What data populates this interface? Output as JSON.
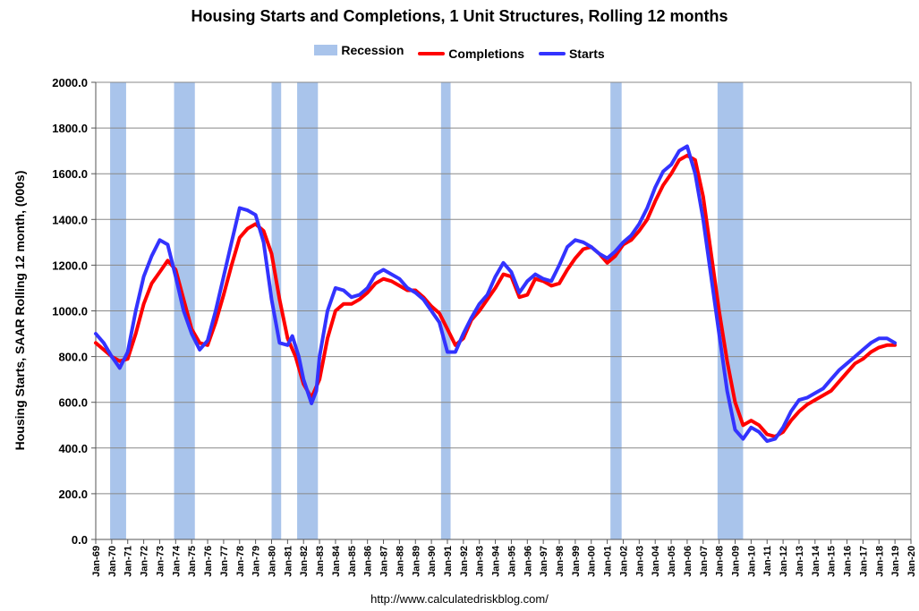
{
  "chart_data": {
    "type": "line",
    "title": "Housing Starts and Completions, 1 Unit Structures, Rolling 12 months",
    "ylabel": "Housing Starts, SAAR Rolling 12 month, (000s)",
    "xlabel": "",
    "source": "http://www.calculatedriskblog.com/",
    "ylim": [
      0,
      2000
    ],
    "xlim": [
      1969,
      2020
    ],
    "y_ticks": [
      "0.0",
      "200.0",
      "400.0",
      "600.0",
      "800.0",
      "1000.0",
      "1200.0",
      "1400.0",
      "1600.0",
      "1800.0",
      "2000.0"
    ],
    "x_ticks": [
      "Jan-69",
      "Jan-70",
      "Jan-71",
      "Jan-72",
      "Jan-73",
      "Jan-74",
      "Jan-75",
      "Jan-76",
      "Jan-77",
      "Jan-78",
      "Jan-79",
      "Jan-80",
      "Jan-81",
      "Jan-82",
      "Jan-83",
      "Jan-84",
      "Jan-85",
      "Jan-86",
      "Jan-87",
      "Jan-88",
      "Jan-89",
      "Jan-90",
      "Jan-91",
      "Jan-92",
      "Jan-93",
      "Jan-94",
      "Jan-95",
      "Jan-96",
      "Jan-97",
      "Jan-98",
      "Jan-99",
      "Jan-00",
      "Jan-01",
      "Jan-02",
      "Jan-03",
      "Jan-04",
      "Jan-05",
      "Jan-06",
      "Jan-07",
      "Jan-08",
      "Jan-09",
      "Jan-10",
      "Jan-11",
      "Jan-12",
      "Jan-13",
      "Jan-14",
      "Jan-15",
      "Jan-16",
      "Jan-17",
      "Jan-18",
      "Jan-19",
      "Jan-20"
    ],
    "grid": true,
    "legend": {
      "position": "top-center",
      "items": [
        {
          "label": "Recession",
          "color": "#a9c4eb",
          "kind": "box"
        },
        {
          "label": "Completions",
          "color": "#ff0000",
          "kind": "line"
        },
        {
          "label": "Starts",
          "color": "#3333ff",
          "kind": "line"
        }
      ]
    },
    "recessions": [
      {
        "start": 1969.9,
        "end": 1970.9
      },
      {
        "start": 1973.9,
        "end": 1975.2
      },
      {
        "start": 1980.0,
        "end": 1980.6
      },
      {
        "start": 1981.6,
        "end": 1982.9
      },
      {
        "start": 1990.6,
        "end": 1991.2
      },
      {
        "start": 2001.2,
        "end": 2001.9
      },
      {
        "start": 2007.9,
        "end": 2009.5
      }
    ],
    "series": [
      {
        "name": "Starts",
        "color": "#3333ff",
        "points": [
          [
            1969.0,
            900
          ],
          [
            1969.5,
            860
          ],
          [
            1970.0,
            800
          ],
          [
            1970.5,
            750
          ],
          [
            1971.0,
            820
          ],
          [
            1971.5,
            1000
          ],
          [
            1972.0,
            1150
          ],
          [
            1972.5,
            1240
          ],
          [
            1973.0,
            1310
          ],
          [
            1973.5,
            1290
          ],
          [
            1974.0,
            1150
          ],
          [
            1974.5,
            1000
          ],
          [
            1975.0,
            900
          ],
          [
            1975.5,
            830
          ],
          [
            1976.0,
            870
          ],
          [
            1976.5,
            1000
          ],
          [
            1977.0,
            1150
          ],
          [
            1977.5,
            1300
          ],
          [
            1978.0,
            1450
          ],
          [
            1978.5,
            1440
          ],
          [
            1979.0,
            1420
          ],
          [
            1979.5,
            1300
          ],
          [
            1980.0,
            1050
          ],
          [
            1980.5,
            860
          ],
          [
            1981.0,
            850
          ],
          [
            1981.3,
            890
          ],
          [
            1981.7,
            800
          ],
          [
            1982.0,
            700
          ],
          [
            1982.5,
            595
          ],
          [
            1982.8,
            650
          ],
          [
            1983.0,
            800
          ],
          [
            1983.5,
            1000
          ],
          [
            1984.0,
            1100
          ],
          [
            1984.5,
            1090
          ],
          [
            1985.0,
            1060
          ],
          [
            1985.5,
            1070
          ],
          [
            1986.0,
            1100
          ],
          [
            1986.5,
            1160
          ],
          [
            1987.0,
            1180
          ],
          [
            1987.5,
            1160
          ],
          [
            1988.0,
            1140
          ],
          [
            1988.5,
            1100
          ],
          [
            1989.0,
            1080
          ],
          [
            1989.5,
            1050
          ],
          [
            1990.0,
            1000
          ],
          [
            1990.5,
            950
          ],
          [
            1991.0,
            820
          ],
          [
            1991.5,
            820
          ],
          [
            1992.0,
            900
          ],
          [
            1992.5,
            970
          ],
          [
            1993.0,
            1030
          ],
          [
            1993.5,
            1070
          ],
          [
            1994.0,
            1150
          ],
          [
            1994.5,
            1210
          ],
          [
            1995.0,
            1170
          ],
          [
            1995.5,
            1080
          ],
          [
            1996.0,
            1130
          ],
          [
            1996.5,
            1160
          ],
          [
            1997.0,
            1140
          ],
          [
            1997.5,
            1130
          ],
          [
            1998.0,
            1200
          ],
          [
            1998.5,
            1280
          ],
          [
            1999.0,
            1310
          ],
          [
            1999.5,
            1300
          ],
          [
            2000.0,
            1280
          ],
          [
            2000.5,
            1250
          ],
          [
            2001.0,
            1230
          ],
          [
            2001.5,
            1260
          ],
          [
            2002.0,
            1300
          ],
          [
            2002.5,
            1330
          ],
          [
            2003.0,
            1380
          ],
          [
            2003.5,
            1450
          ],
          [
            2004.0,
            1540
          ],
          [
            2004.5,
            1610
          ],
          [
            2005.0,
            1640
          ],
          [
            2005.5,
            1700
          ],
          [
            2006.0,
            1720
          ],
          [
            2006.5,
            1600
          ],
          [
            2007.0,
            1400
          ],
          [
            2007.5,
            1150
          ],
          [
            2008.0,
            900
          ],
          [
            2008.5,
            650
          ],
          [
            2009.0,
            480
          ],
          [
            2009.5,
            440
          ],
          [
            2010.0,
            490
          ],
          [
            2010.5,
            470
          ],
          [
            2011.0,
            430
          ],
          [
            2011.5,
            440
          ],
          [
            2012.0,
            490
          ],
          [
            2012.5,
            560
          ],
          [
            2013.0,
            610
          ],
          [
            2013.5,
            620
          ],
          [
            2014.0,
            640
          ],
          [
            2014.5,
            660
          ],
          [
            2015.0,
            700
          ],
          [
            2015.5,
            740
          ],
          [
            2016.0,
            770
          ],
          [
            2016.5,
            800
          ],
          [
            2017.0,
            830
          ],
          [
            2017.5,
            860
          ],
          [
            2018.0,
            880
          ],
          [
            2018.5,
            880
          ],
          [
            2019.0,
            860
          ]
        ]
      },
      {
        "name": "Completions",
        "color": "#ff0000",
        "points": [
          [
            1969.0,
            860
          ],
          [
            1969.5,
            830
          ],
          [
            1970.0,
            800
          ],
          [
            1970.5,
            780
          ],
          [
            1971.0,
            790
          ],
          [
            1971.5,
            900
          ],
          [
            1972.0,
            1030
          ],
          [
            1972.5,
            1120
          ],
          [
            1973.0,
            1170
          ],
          [
            1973.5,
            1220
          ],
          [
            1974.0,
            1180
          ],
          [
            1974.5,
            1050
          ],
          [
            1975.0,
            920
          ],
          [
            1975.5,
            860
          ],
          [
            1976.0,
            850
          ],
          [
            1976.5,
            950
          ],
          [
            1977.0,
            1070
          ],
          [
            1977.5,
            1200
          ],
          [
            1978.0,
            1320
          ],
          [
            1978.5,
            1360
          ],
          [
            1979.0,
            1380
          ],
          [
            1979.5,
            1350
          ],
          [
            1980.0,
            1250
          ],
          [
            1980.5,
            1050
          ],
          [
            1981.0,
            880
          ],
          [
            1981.5,
            800
          ],
          [
            1982.0,
            680
          ],
          [
            1982.5,
            620
          ],
          [
            1983.0,
            700
          ],
          [
            1983.5,
            880
          ],
          [
            1984.0,
            1000
          ],
          [
            1984.5,
            1030
          ],
          [
            1985.0,
            1030
          ],
          [
            1985.5,
            1050
          ],
          [
            1986.0,
            1080
          ],
          [
            1986.5,
            1120
          ],
          [
            1987.0,
            1140
          ],
          [
            1987.5,
            1130
          ],
          [
            1988.0,
            1110
          ],
          [
            1988.5,
            1090
          ],
          [
            1989.0,
            1090
          ],
          [
            1989.5,
            1060
          ],
          [
            1990.0,
            1020
          ],
          [
            1990.5,
            990
          ],
          [
            1991.0,
            920
          ],
          [
            1991.5,
            850
          ],
          [
            1992.0,
            880
          ],
          [
            1992.5,
            960
          ],
          [
            1993.0,
            1000
          ],
          [
            1993.5,
            1050
          ],
          [
            1994.0,
            1100
          ],
          [
            1994.5,
            1160
          ],
          [
            1995.0,
            1150
          ],
          [
            1995.5,
            1060
          ],
          [
            1996.0,
            1070
          ],
          [
            1996.5,
            1140
          ],
          [
            1997.0,
            1130
          ],
          [
            1997.5,
            1110
          ],
          [
            1998.0,
            1120
          ],
          [
            1998.5,
            1180
          ],
          [
            1999.0,
            1230
          ],
          [
            1999.5,
            1270
          ],
          [
            2000.0,
            1280
          ],
          [
            2000.5,
            1250
          ],
          [
            2001.0,
            1210
          ],
          [
            2001.5,
            1240
          ],
          [
            2002.0,
            1290
          ],
          [
            2002.5,
            1310
          ],
          [
            2003.0,
            1350
          ],
          [
            2003.5,
            1400
          ],
          [
            2004.0,
            1480
          ],
          [
            2004.5,
            1550
          ],
          [
            2005.0,
            1600
          ],
          [
            2005.5,
            1660
          ],
          [
            2006.0,
            1680
          ],
          [
            2006.5,
            1660
          ],
          [
            2007.0,
            1500
          ],
          [
            2007.5,
            1250
          ],
          [
            2008.0,
            1000
          ],
          [
            2008.5,
            780
          ],
          [
            2009.0,
            600
          ],
          [
            2009.5,
            500
          ],
          [
            2010.0,
            520
          ],
          [
            2010.5,
            500
          ],
          [
            2011.0,
            460
          ],
          [
            2011.5,
            450
          ],
          [
            2012.0,
            470
          ],
          [
            2012.5,
            520
          ],
          [
            2013.0,
            560
          ],
          [
            2013.5,
            590
          ],
          [
            2014.0,
            610
          ],
          [
            2014.5,
            630
          ],
          [
            2015.0,
            650
          ],
          [
            2015.5,
            690
          ],
          [
            2016.0,
            730
          ],
          [
            2016.5,
            770
          ],
          [
            2017.0,
            790
          ],
          [
            2017.5,
            820
          ],
          [
            2018.0,
            840
          ],
          [
            2018.5,
            850
          ],
          [
            2019.0,
            850
          ]
        ]
      }
    ]
  }
}
